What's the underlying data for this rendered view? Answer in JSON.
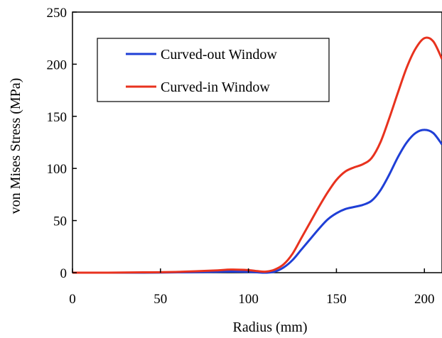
{
  "chart_data": {
    "type": "line",
    "title": "",
    "xlabel": "Radius (mm)",
    "ylabel": "von Mises Stress (MPa)",
    "xlim": [
      0,
      210
    ],
    "ylim": [
      0,
      250
    ],
    "xticks": [
      0,
      50,
      100,
      150,
      200
    ],
    "yticks": [
      0,
      50,
      100,
      150,
      200,
      250
    ],
    "grid": false,
    "legend_position": "top-left",
    "series": [
      {
        "name": "Curved-out Window",
        "color": "#1f3fd6",
        "x": [
          0,
          20,
          40,
          60,
          80,
          90,
          100,
          105,
          110,
          115,
          120,
          125,
          130,
          135,
          140,
          145,
          150,
          155,
          160,
          165,
          170,
          175,
          180,
          185,
          190,
          195,
          200,
          205,
          210
        ],
        "y": [
          0,
          0,
          0,
          0.3,
          0.8,
          1,
          0.8,
          0.3,
          0,
          1,
          5,
          12,
          22,
          32,
          42,
          51,
          57,
          61,
          63,
          65,
          69,
          79,
          94,
          111,
          125,
          134,
          137,
          134,
          123
        ]
      },
      {
        "name": "Curved-in Window",
        "color": "#e8321e",
        "x": [
          0,
          20,
          40,
          60,
          80,
          90,
          100,
          105,
          110,
          115,
          120,
          125,
          130,
          135,
          140,
          145,
          150,
          155,
          160,
          165,
          170,
          175,
          180,
          185,
          190,
          195,
          200,
          205,
          210
        ],
        "y": [
          0,
          0,
          0.3,
          0.8,
          2,
          3,
          2.5,
          1.5,
          1,
          3,
          8,
          18,
          33,
          48,
          63,
          77,
          89,
          97,
          101,
          104,
          110,
          125,
          148,
          173,
          197,
          215,
          225,
          222,
          205
        ]
      }
    ]
  }
}
